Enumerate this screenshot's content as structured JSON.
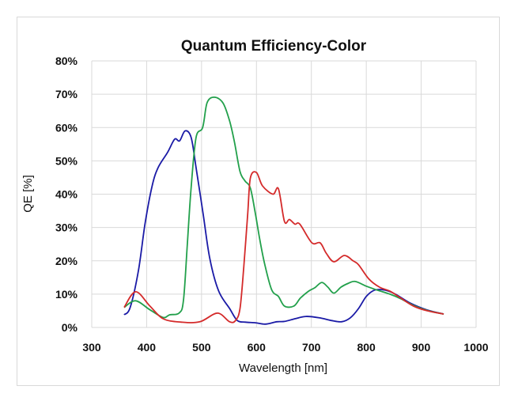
{
  "chart_data": {
    "type": "line",
    "title": "Quantum Efficiency-Color",
    "xlabel": "Wavelength [nm]",
    "ylabel": "QE [%]",
    "xlim": [
      300,
      1000
    ],
    "ylim": [
      0,
      80
    ],
    "grid": true,
    "legend": "none",
    "x_ticks": [
      300,
      400,
      500,
      600,
      700,
      800,
      900,
      1000
    ],
    "x_tick_labels": [
      "300",
      "400",
      "500",
      "600",
      "700",
      "800",
      "900",
      "1000"
    ],
    "y_ticks": [
      0,
      10,
      20,
      30,
      40,
      50,
      60,
      70,
      80
    ],
    "y_tick_labels": [
      "0%",
      "10%",
      "20%",
      "30%",
      "40%",
      "50%",
      "60%",
      "70%",
      "80%"
    ],
    "series": [
      {
        "name": "Blue",
        "color": "#1a1aa6",
        "x": [
          359,
          370,
          385,
          397,
          410,
          421,
          438,
          451,
          460,
          470,
          481,
          490,
          503,
          515,
          531,
          551,
          565,
          580,
          598,
          616,
          637,
          651,
          670,
          690,
          714,
          736,
          755,
          771,
          786,
          800,
          815,
          834,
          853,
          880,
          910,
          941
        ],
        "y": [
          3.8,
          6,
          17,
          31,
          42.5,
          48,
          52.5,
          56.5,
          56,
          59,
          57,
          48,
          34,
          20.7,
          11,
          5.7,
          2.1,
          1.6,
          1.4,
          1,
          1.7,
          1.8,
          2.6,
          3.3,
          2.9,
          2.1,
          1.7,
          2.9,
          5.7,
          9.3,
          11.2,
          11.2,
          10,
          7.3,
          5.3,
          4
        ]
      },
      {
        "name": "Green",
        "color": "#22a04b",
        "x": [
          359,
          380,
          406,
          430,
          442,
          459,
          467,
          474,
          481,
          490,
          502,
          510,
          523,
          539,
          551,
          560,
          570,
          579,
          589,
          598,
          606,
          616,
          628,
          640,
          651,
          668,
          680,
          695,
          706,
          719,
          730,
          741,
          754,
          768,
          780,
          800,
          820,
          843,
          863,
          886,
          911,
          941
        ],
        "y": [
          6,
          8,
          5.3,
          3,
          3.8,
          4.3,
          8,
          24.7,
          42,
          57,
          60,
          67.4,
          69.1,
          67.4,
          62,
          55.6,
          46.8,
          44,
          41.8,
          34.2,
          26.4,
          18.3,
          11.2,
          9.3,
          6.4,
          6.4,
          8.8,
          10.9,
          11.9,
          13.5,
          12.1,
          10.3,
          12.1,
          13.3,
          13.8,
          12.4,
          11.2,
          10,
          8.6,
          6.6,
          5.1,
          4
        ]
      },
      {
        "name": "Red",
        "color": "#d42a2a",
        "x": [
          359,
          380,
          406,
          430,
          463,
          497,
          529,
          551,
          562,
          570,
          577,
          584,
          589,
          600,
          611,
          630,
          640,
          651,
          660,
          670,
          679,
          701,
          716,
          727,
          741,
          760,
          776,
          786,
          805,
          824,
          843,
          863,
          886,
          911,
          941
        ],
        "y": [
          6,
          10.7,
          6.4,
          2.6,
          1.6,
          1.7,
          4.3,
          1.7,
          2.1,
          5.7,
          18.3,
          34,
          44.9,
          46.5,
          42.5,
          40,
          41.6,
          31.8,
          32.4,
          31,
          31,
          25.4,
          25.4,
          22.3,
          19.7,
          21.6,
          20,
          18.8,
          14.5,
          12.1,
          10.9,
          8.8,
          6.4,
          5,
          4
        ]
      }
    ]
  }
}
